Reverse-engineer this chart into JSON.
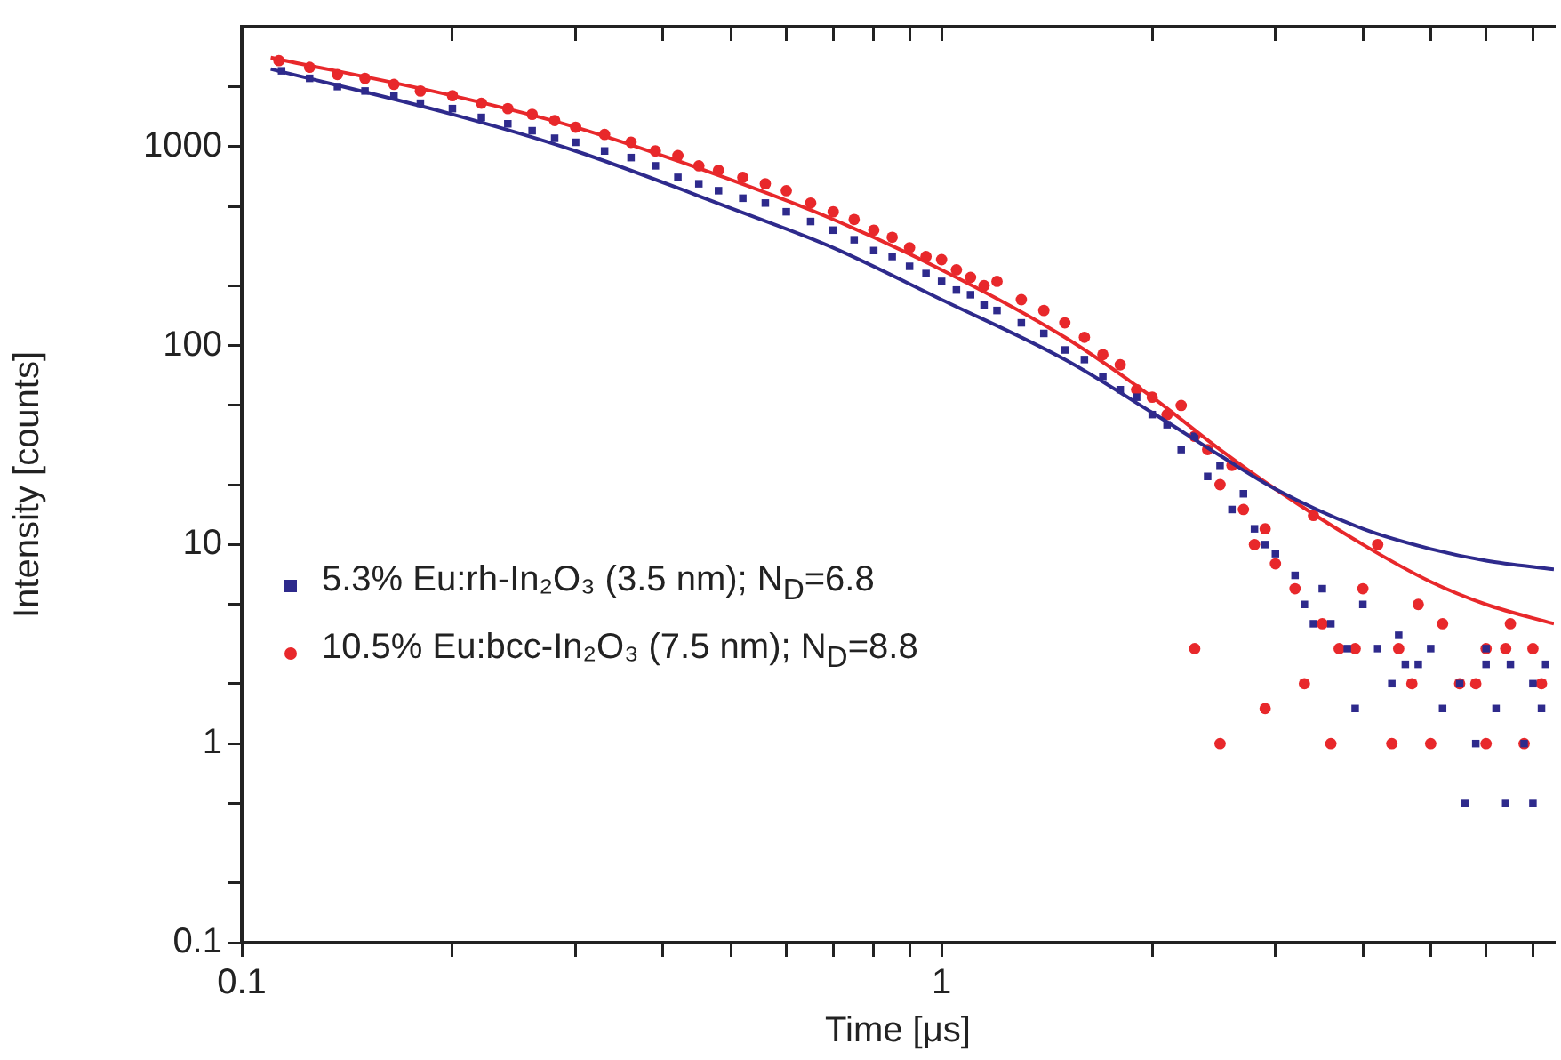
{
  "chart_data": {
    "type": "scatter",
    "xlabel": "Time [μs]",
    "ylabel": "Intensity [counts]",
    "log": "xy",
    "legend": "left",
    "grid": false,
    "xlim": [
      0.1,
      7.5
    ],
    "ylim": [
      0.1,
      4000
    ],
    "xticks": [
      0.1,
      {
        "value": 0.2,
        "label": null
      },
      {
        "value": 0.3,
        "label": null
      },
      {
        "value": 0.4,
        "label": null
      },
      {
        "value": 0.5,
        "label": null
      },
      {
        "value": 0.6,
        "label": null
      },
      {
        "value": 0.7,
        "label": null
      },
      {
        "value": 0.8,
        "label": null
      },
      {
        "value": 0.9,
        "label": null
      },
      1,
      {
        "value": 2,
        "label": null
      },
      {
        "value": 3,
        "label": null
      },
      {
        "value": 4,
        "label": null
      },
      {
        "value": 5,
        "label": null
      },
      {
        "value": 6,
        "label": null
      },
      {
        "value": 7,
        "label": null
      }
    ],
    "yticks": [
      0.1,
      {
        "value": 0.2,
        "label": null
      },
      {
        "value": 0.5,
        "label": null
      },
      1,
      {
        "value": 2,
        "label": null
      },
      {
        "value": 5,
        "label": null
      },
      10,
      {
        "value": 20,
        "label": null
      },
      {
        "value": 50,
        "label": null
      },
      100,
      {
        "value": 200,
        "label": null
      },
      {
        "value": 500,
        "label": null
      },
      1000,
      {
        "value": 2000,
        "label": null
      }
    ],
    "series": [
      {
        "name": "5.3% Eu:rh-In₂O₃ (3.5 nm); N$_{D}$=6.8",
        "color": "#2e2a8c",
        "marker": "square",
        "x": [
          0.114,
          0.125,
          0.137,
          0.15,
          0.165,
          0.18,
          0.2,
          0.22,
          0.24,
          0.26,
          0.28,
          0.3,
          0.33,
          0.36,
          0.39,
          0.42,
          0.45,
          0.48,
          0.52,
          0.56,
          0.6,
          0.65,
          0.7,
          0.75,
          0.8,
          0.85,
          0.9,
          0.95,
          1.0,
          1.05,
          1.1,
          1.15,
          1.2,
          1.3,
          1.4,
          1.5,
          1.6,
          1.7,
          1.8,
          1.9,
          2.0,
          2.1,
          2.2,
          2.3,
          2.4,
          2.5,
          2.6,
          2.7,
          2.8,
          2.9,
          3.0,
          3.2,
          3.3,
          3.5,
          3.6,
          3.8,
          4.0,
          4.2,
          4.5,
          4.8,
          5.0,
          5.5,
          6,
          6.5,
          7,
          4.4,
          5.2,
          6.2,
          7.2,
          5.8,
          6.8,
          5.6,
          6.4,
          7.0,
          3.9,
          4.6,
          6.0,
          7.3,
          3.4
        ],
        "values": [
          2400,
          2200,
          2000,
          1900,
          1800,
          1650,
          1550,
          1400,
          1300,
          1200,
          1100,
          1050,
          950,
          880,
          800,
          700,
          650,
          600,
          550,
          520,
          470,
          420,
          380,
          340,
          300,
          280,
          250,
          230,
          210,
          190,
          180,
          160,
          150,
          130,
          115,
          95,
          85,
          70,
          60,
          55,
          45,
          40,
          30,
          35,
          22,
          25,
          15,
          18,
          12,
          10,
          9,
          7,
          5,
          6,
          4,
          3,
          5,
          3,
          3.5,
          2.5,
          3,
          2,
          3,
          2.5,
          2,
          2,
          1.5,
          1.5,
          1.5,
          1,
          1,
          0.5,
          0.5,
          0.5,
          1.5,
          2.5,
          2.5,
          2.5,
          4
        ]
      },
      {
        "name": "10.5% Eu:bcc-In₂O₃ (7.5 nm); N$_{D}$=8.8",
        "color": "#e8282b",
        "marker": "circle",
        "x": [
          0.113,
          0.125,
          0.137,
          0.15,
          0.165,
          0.18,
          0.2,
          0.22,
          0.24,
          0.26,
          0.28,
          0.3,
          0.33,
          0.36,
          0.39,
          0.42,
          0.45,
          0.48,
          0.52,
          0.56,
          0.6,
          0.65,
          0.7,
          0.75,
          0.8,
          0.85,
          0.9,
          0.95,
          1.0,
          1.05,
          1.1,
          1.15,
          1.2,
          1.3,
          1.4,
          1.5,
          1.6,
          1.7,
          1.8,
          1.9,
          2.0,
          2.1,
          2.2,
          2.3,
          2.4,
          2.5,
          2.6,
          2.7,
          2.8,
          2.9,
          3.0,
          3.2,
          3.4,
          3.5,
          3.7,
          4.0,
          4.2,
          4.5,
          4.8,
          5.2,
          5.5,
          6,
          6.5,
          7,
          2.3,
          2.5,
          3.6,
          4.4,
          5.0,
          6.0,
          6.8,
          3.3,
          4.7,
          5.8,
          7.2,
          2.9,
          3.9,
          6.4
        ],
        "values": [
          2700,
          2500,
          2300,
          2200,
          2050,
          1900,
          1800,
          1650,
          1550,
          1450,
          1350,
          1250,
          1150,
          1050,
          950,
          900,
          800,
          760,
          700,
          650,
          600,
          520,
          470,
          430,
          380,
          350,
          310,
          280,
          270,
          240,
          220,
          200,
          210,
          170,
          150,
          130,
          110,
          90,
          80,
          60,
          55,
          45,
          50,
          35,
          30,
          20,
          25,
          15,
          10,
          12,
          8,
          6,
          14,
          4,
          3,
          6,
          10,
          3,
          5,
          4,
          2,
          3,
          4,
          3,
          3,
          1,
          1,
          1,
          1,
          1,
          1,
          2,
          2,
          2,
          2,
          1.5,
          3,
          3
        ]
      },
      {
        "type": "line",
        "color": "#2e2a8c",
        "marker": "none",
        "x": [
          0.11,
          0.2,
          0.3,
          0.5,
          0.7,
          1,
          1.5,
          2,
          2.5,
          3,
          4,
          5,
          6,
          7.5
        ],
        "values": [
          2450,
          1450,
          950,
          490,
          310,
          170,
          85,
          46,
          28,
          19,
          12,
          9.5,
          8.3,
          7.5
        ]
      },
      {
        "type": "line",
        "color": "#e8282b",
        "marker": "none",
        "x": [
          0.11,
          0.2,
          0.3,
          0.5,
          0.7,
          1,
          1.5,
          2,
          2.5,
          3,
          4,
          5,
          6,
          7.5
        ],
        "values": [
          2800,
          1800,
          1250,
          680,
          430,
          240,
          110,
          55,
          30,
          19,
          10,
          6.5,
          5,
          4
        ]
      }
    ]
  }
}
